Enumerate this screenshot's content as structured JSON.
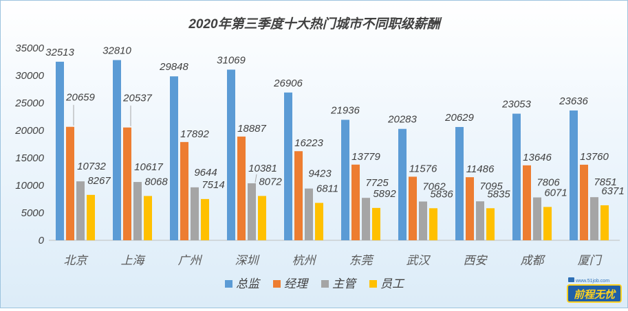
{
  "chart_data": {
    "type": "bar",
    "title": "2020年第三季度十大热门城市不同职级薪酬",
    "categories": [
      "北京",
      "上海",
      "广州",
      "深圳",
      "杭州",
      "东莞",
      "武汉",
      "西安",
      "成都",
      "厦门"
    ],
    "series": [
      {
        "name": "总监",
        "color": "#5b9bd5",
        "values": [
          32513,
          32810,
          29848,
          31069,
          26906,
          21936,
          20283,
          20629,
          23053,
          23636
        ]
      },
      {
        "name": "经理",
        "color": "#ed7d31",
        "values": [
          20659,
          20537,
          17892,
          18887,
          16223,
          13779,
          11576,
          11486,
          13646,
          13760
        ]
      },
      {
        "name": "主管",
        "color": "#a5a5a5",
        "values": [
          10732,
          10617,
          9644,
          10381,
          9423,
          7725,
          7062,
          7095,
          7806,
          7851
        ]
      },
      {
        "name": "员工",
        "color": "#ffc000",
        "values": [
          8267,
          8068,
          7514,
          8072,
          6811,
          5892,
          5836,
          5835,
          6071,
          6371
        ]
      }
    ],
    "ylim": [
      0,
      35000
    ],
    "yticks": [
      0,
      5000,
      10000,
      15000,
      20000,
      25000,
      30000,
      35000
    ],
    "legend_position": "bottom",
    "grid": false
  },
  "logo": {
    "url_text": "www.51job.com",
    "brand_text": "前程无忧"
  }
}
